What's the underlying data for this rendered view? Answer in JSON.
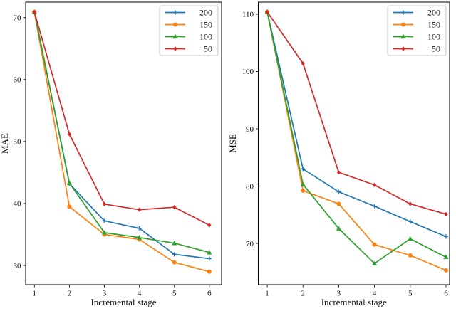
{
  "figure": {
    "background": "#ffffff",
    "axis_color": "#000000",
    "legend_border_color": "#c9c9c9"
  },
  "chart_data": [
    {
      "type": "line",
      "title": "",
      "xlabel": "Incremental stage",
      "ylabel": "MAE",
      "x": [
        1,
        2,
        3,
        4,
        5,
        6
      ],
      "xticks": [
        1,
        2,
        3,
        4,
        5,
        6
      ],
      "yticks": [
        30,
        40,
        50,
        60,
        70
      ],
      "xlim": [
        0.75,
        6.35
      ],
      "ylim": [
        26.9,
        72.5
      ],
      "grid": false,
      "legend_position": "upper-right",
      "series": [
        {
          "name": "200",
          "color": "#1f77b4",
          "marker": "plus",
          "values": [
            70.9,
            43.2,
            37.2,
            36.0,
            31.8,
            31.1
          ]
        },
        {
          "name": "150",
          "color": "#ff7f0e",
          "marker": "circle",
          "values": [
            70.9,
            39.5,
            35.0,
            34.2,
            30.5,
            29.0
          ]
        },
        {
          "name": "100",
          "color": "#2ca02c",
          "marker": "triangle",
          "values": [
            70.9,
            43.3,
            35.3,
            34.5,
            33.6,
            32.1
          ]
        },
        {
          "name": "50",
          "color": "#d62728",
          "marker": "diamond",
          "values": [
            70.9,
            51.2,
            39.9,
            39.0,
            39.4,
            36.5
          ]
        }
      ]
    },
    {
      "type": "line",
      "title": "",
      "xlabel": "Incremental stage",
      "ylabel": "MSE",
      "x": [
        1,
        2,
        3,
        4,
        5,
        6
      ],
      "xticks": [
        1,
        2,
        3,
        4,
        5,
        6
      ],
      "yticks": [
        70,
        80,
        90,
        100,
        110
      ],
      "xlim": [
        0.75,
        6.1
      ],
      "ylim": [
        62.8,
        112.1
      ],
      "grid": false,
      "legend_position": "upper-right",
      "series": [
        {
          "name": "200",
          "color": "#1f77b4",
          "marker": "plus",
          "values": [
            110.4,
            83.0,
            79.0,
            76.5,
            73.8,
            71.2
          ]
        },
        {
          "name": "150",
          "color": "#ff7f0e",
          "marker": "circle",
          "values": [
            110.4,
            79.2,
            76.9,
            69.8,
            67.9,
            65.3
          ]
        },
        {
          "name": "100",
          "color": "#2ca02c",
          "marker": "triangle",
          "values": [
            110.4,
            80.3,
            72.6,
            66.5,
            70.8,
            67.6
          ]
        },
        {
          "name": "50",
          "color": "#d62728",
          "marker": "diamond",
          "values": [
            110.4,
            101.4,
            82.4,
            80.2,
            76.9,
            75.1
          ]
        }
      ]
    }
  ]
}
